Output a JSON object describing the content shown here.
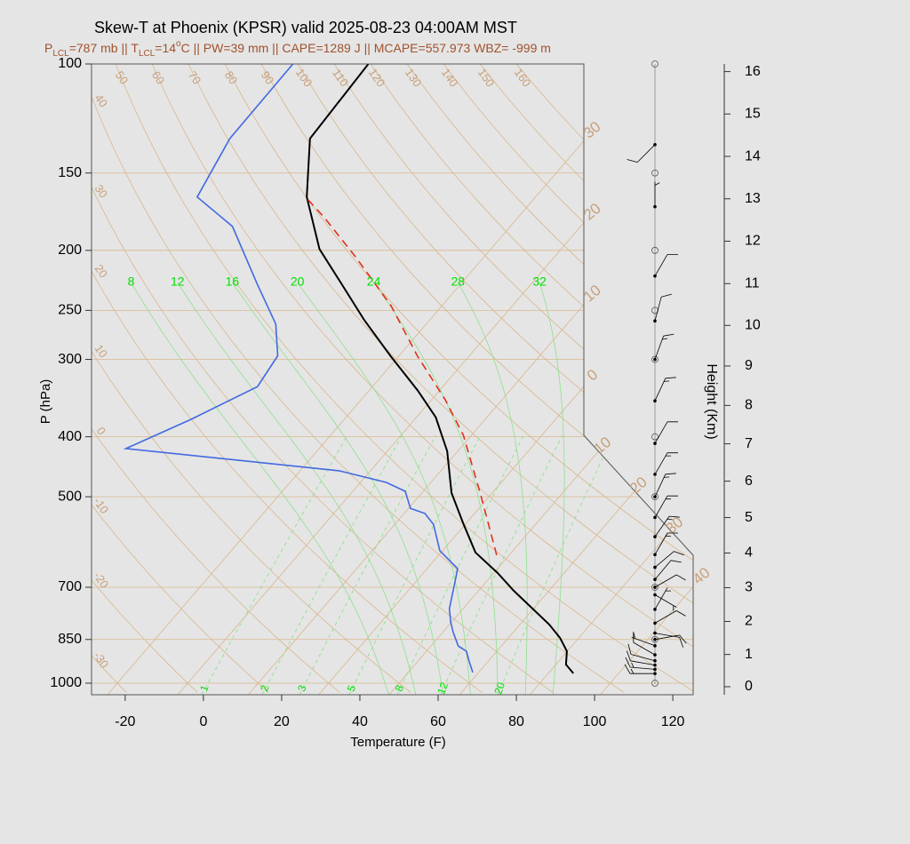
{
  "chart_data": {
    "type": "skewt",
    "title": "Skew-T at Phoenix (KPSR) valid 2025-08-23 04:00AM MST",
    "subtitle": [
      {
        "text": "P"
      },
      {
        "text": "LCL",
        "shift": "sub"
      },
      {
        "text": "=787 mb || T"
      },
      {
        "text": "LCL",
        "shift": "sub"
      },
      {
        "text": "=14"
      },
      {
        "text": "o",
        "shift": "super"
      },
      {
        "text": "C || PW=39 mm || CAPE=1289 J || MCAPE=557.973 WBZ= -999 m"
      }
    ],
    "x_label": "Temperature (F)",
    "y_label": "P (hPa)",
    "y2_label": "Height (Km)",
    "xlim": [
      -28.6,
      125.2
    ],
    "xticks": [
      -20,
      0,
      20,
      40,
      60,
      80,
      100,
      120
    ],
    "ylim": [
      1044,
      100
    ],
    "y_scale": "log",
    "yticks": [
      100,
      150,
      200,
      250,
      300,
      400,
      500,
      700,
      850,
      1000
    ],
    "y2ticks": [
      0,
      1,
      2,
      3,
      4,
      5,
      6,
      7,
      8,
      9,
      10,
      11,
      12,
      13,
      14,
      15,
      16
    ],
    "grid_color": "#d9b68c",
    "label_color": "#c8a07a",
    "adiabat_label_color": "#00e000",
    "moist_color": "#8fe08f",
    "series": [
      {
        "color": "#000000",
        "pressure": [
          964,
          933,
          888,
          845,
          804,
          760,
          709,
          664,
          615,
          554,
          493,
          422,
          372,
          337,
          296,
          259,
          227,
          199,
          164,
          132,
          100
        ],
        "values": [
          92.4,
          88.6,
          85.9,
          81.2,
          75.5,
          68.1,
          59.0,
          51.0,
          40.8,
          31.6,
          21.6,
          11.3,
          0.9,
          -9.5,
          -24.2,
          -38.8,
          -52.3,
          -65.8,
          -80.5,
          -92.5,
          -94.0
        ]
      },
      {
        "color": "#4169e1",
        "pressure": [
          961,
          924,
          888,
          871,
          828,
          796,
          758,
          709,
          675,
          653,
          638,
          611,
          554,
          532,
          522,
          490,
          474,
          454,
          418,
          375,
          332,
          296,
          263,
          227,
          183,
          164,
          132,
          100
        ],
        "values": [
          66.5,
          63.3,
          60.2,
          57.0,
          52.7,
          49.7,
          46.5,
          43.5,
          41.3,
          39.8,
          36.8,
          31.3,
          23.9,
          19.3,
          14.5,
          9.4,
          2.6,
          -12.0,
          -71.4,
          -61.2,
          -51.4,
          -53.0,
          -60.5,
          -73.9,
          -93.0,
          -108.5,
          -113.0,
          -113.3
        ]
      },
      {
        "color": "#e0301e",
        "dashed": true,
        "pressure": [
          621,
          501,
          398,
          349,
          296,
          246,
          205,
          177,
          164
        ],
        "values": [
          46.8,
          30.2,
          12.0,
          -0.4,
          -17.3,
          -34.9,
          -54.8,
          -71.5,
          -80.8
        ]
      }
    ],
    "isotherm_labels": [
      {
        "value": -30,
        "label": "30"
      },
      {
        "value": -20,
        "label": "20"
      },
      {
        "value": -10,
        "label": "10"
      },
      0,
      10,
      20,
      30,
      40
    ],
    "dry_adiabats": [
      -30,
      -20,
      -10,
      0,
      10,
      20,
      30,
      40,
      50,
      60,
      70,
      80,
      90,
      100,
      110,
      120,
      130,
      140,
      150,
      160
    ],
    "moist_adiabats": [
      8,
      12,
      16,
      20,
      24,
      28,
      32
    ],
    "mixing_ratios": [
      1,
      2,
      3,
      5,
      8,
      12,
      20
    ],
    "winds": {
      "pressure": [
        965,
        950,
        935,
        920,
        900,
        870,
        850,
        830,
        800,
        760,
        720,
        700,
        680,
        650,
        620,
        580,
        540,
        500,
        460,
        410,
        350,
        300,
        260,
        220,
        170,
        135
      ],
      "direction": [
        270,
        275,
        280,
        285,
        300,
        290,
        80,
        100,
        60,
        30,
        120,
        60,
        40,
        50,
        30,
        35,
        30,
        25,
        30,
        30,
        25,
        20,
        15,
        30,
        0,
        225
      ],
      "speed": [
        15,
        15,
        10,
        10,
        10,
        5,
        10,
        10,
        10,
        5,
        5,
        10,
        10,
        10,
        15,
        15,
        15,
        15,
        15,
        10,
        15,
        15,
        10,
        10,
        5,
        10
      ]
    }
  }
}
